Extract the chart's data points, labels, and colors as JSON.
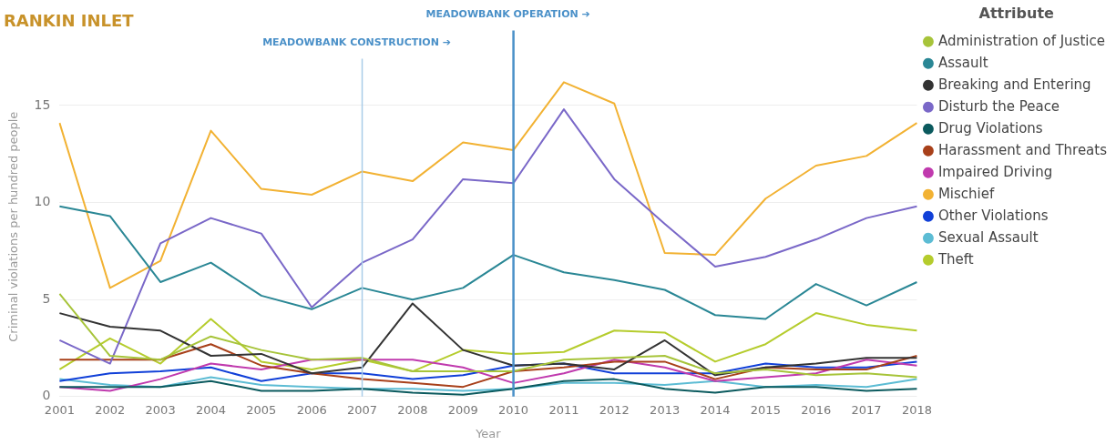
{
  "chart_data": {
    "type": "line",
    "title": "RANKIN INLET",
    "xlabel": "Year",
    "ylabel": "Criminal violations per hundred people",
    "legend_title": "Attribute",
    "legend": "right",
    "grid": "y",
    "marker": "none",
    "line_style": "solid",
    "categories": [
      "2001",
      "2002",
      "2003",
      "2004",
      "2005",
      "2006",
      "2007",
      "2008",
      "2009",
      "2010",
      "2011",
      "2012",
      "2013",
      "2014",
      "2015",
      "2016",
      "2017",
      "2018"
    ],
    "ylim": [
      0,
      17.5
    ],
    "yticks": [
      0,
      5,
      10,
      15
    ],
    "series": [
      {
        "name": "Administration of Justice",
        "color": "#a7c43a",
        "values": [
          5.3,
          2.1,
          1.9,
          3.1,
          2.4,
          1.9,
          2.0,
          1.3,
          1.3,
          1.3,
          1.9,
          2.0,
          2.1,
          1.2,
          1.4,
          1.1,
          1.2,
          1.0
        ]
      },
      {
        "name": "Assault",
        "color": "#2a8795",
        "values": [
          9.8,
          9.3,
          5.9,
          6.9,
          5.2,
          4.5,
          5.6,
          5.0,
          5.6,
          7.3,
          6.4,
          6.0,
          5.5,
          4.2,
          4.0,
          5.8,
          4.7,
          5.9
        ]
      },
      {
        "name": "Breaking and Entering",
        "color": "#333333",
        "values": [
          4.3,
          3.6,
          3.4,
          2.1,
          2.2,
          1.2,
          1.5,
          4.8,
          2.4,
          1.6,
          1.7,
          1.4,
          2.9,
          1.1,
          1.5,
          1.7,
          2.0,
          2.0
        ]
      },
      {
        "name": "Disturb the Peace",
        "color": "#7a68c8",
        "values": [
          2.9,
          1.7,
          7.9,
          9.2,
          8.4,
          4.6,
          6.9,
          8.1,
          11.2,
          11.0,
          14.8,
          11.2,
          8.9,
          6.7,
          7.2,
          8.1,
          9.2,
          9.8
        ]
      },
      {
        "name": "Drug Violations",
        "color": "#0b5a5e",
        "values": [
          0.5,
          0.5,
          0.5,
          0.8,
          0.3,
          0.3,
          0.4,
          0.2,
          0.1,
          0.4,
          0.8,
          0.9,
          0.4,
          0.2,
          0.5,
          0.5,
          0.3,
          0.4
        ]
      },
      {
        "name": "Harassment and Threats",
        "color": "#a8401a",
        "values": [
          1.9,
          1.9,
          1.9,
          2.7,
          1.6,
          1.2,
          0.9,
          0.7,
          0.5,
          1.3,
          1.5,
          1.8,
          1.8,
          0.9,
          1.5,
          1.4,
          1.4,
          2.1
        ]
      },
      {
        "name": "Impaired Driving",
        "color": "#c03aae",
        "values": [
          0.5,
          0.3,
          0.9,
          1.7,
          1.4,
          1.9,
          1.9,
          1.9,
          1.5,
          0.7,
          1.2,
          1.9,
          1.5,
          0.8,
          1.0,
          1.2,
          1.9,
          1.6
        ]
      },
      {
        "name": "Mischief",
        "color": "#f2b233",
        "values": [
          14.1,
          5.6,
          7.0,
          13.7,
          10.7,
          10.4,
          11.6,
          11.1,
          13.1,
          12.7,
          16.2,
          15.1,
          7.4,
          7.3,
          10.2,
          11.9,
          12.4,
          14.1
        ]
      },
      {
        "name": "Other Violations",
        "color": "#1140d8",
        "values": [
          0.8,
          1.2,
          1.3,
          1.5,
          0.8,
          1.2,
          1.2,
          0.9,
          1.1,
          1.6,
          1.7,
          1.2,
          1.2,
          1.2,
          1.7,
          1.5,
          1.5,
          1.8
        ]
      },
      {
        "name": "Sexual Assault",
        "color": "#5cbcd4",
        "values": [
          0.9,
          0.6,
          0.5,
          1.0,
          0.6,
          0.5,
          0.4,
          0.4,
          0.3,
          0.4,
          0.7,
          0.7,
          0.6,
          0.8,
          0.5,
          0.6,
          0.5,
          0.9
        ]
      },
      {
        "name": "Theft",
        "color": "#b5cc2d",
        "values": [
          1.4,
          3.0,
          1.7,
          4.0,
          1.8,
          1.4,
          1.9,
          1.3,
          2.4,
          2.2,
          2.3,
          3.4,
          3.3,
          1.8,
          2.7,
          4.3,
          3.7,
          3.4
        ]
      }
    ],
    "ref_lines": [
      {
        "axis": "x",
        "value": "2007",
        "label": "MEADOWBANK CONSTRUCTION ➔",
        "color": "#a9cce8"
      },
      {
        "axis": "x",
        "value": "2010",
        "label": "MEADOWBANK OPERATION ➔",
        "color": "#4a90c8"
      }
    ]
  }
}
